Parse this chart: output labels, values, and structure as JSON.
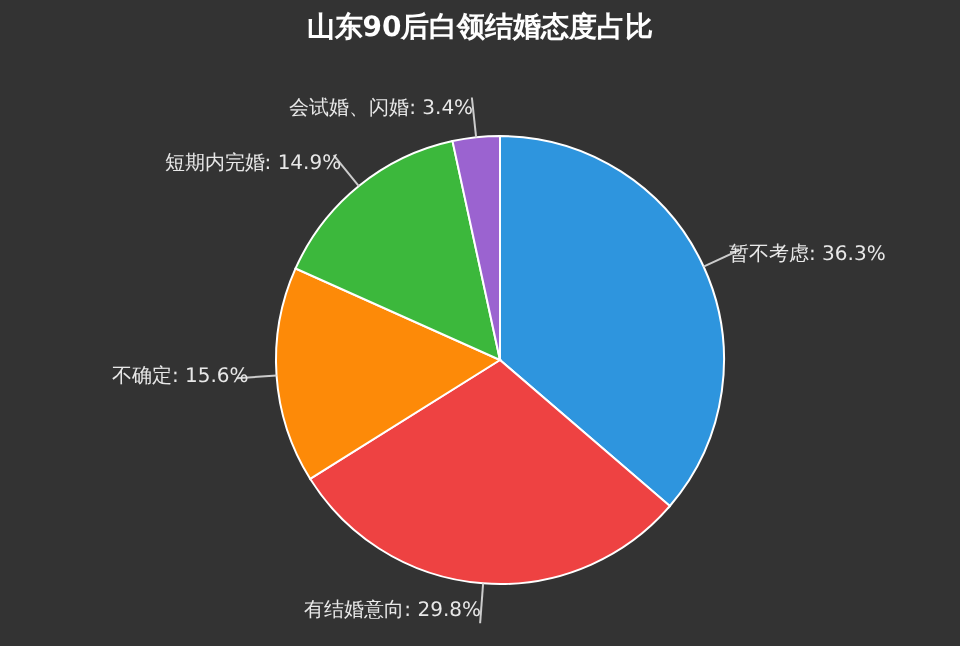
{
  "chart_data": {
    "type": "pie",
    "title": "山东90后白领结婚态度占比",
    "categories": [
      "暂不考虑",
      "有结婚意向",
      "不确定",
      "短期内完婚",
      "会试婚、闪婚"
    ],
    "values": [
      36.3,
      29.8,
      15.6,
      14.9,
      3.4
    ],
    "colors": [
      "#2e95de",
      "#ee4242",
      "#fd8a08",
      "#3cb83c",
      "#9b63d0"
    ],
    "value_labels": [
      "36.3%",
      "29.8%",
      "15.6%",
      "14.9%",
      "3.4%"
    ],
    "legend": false
  }
}
